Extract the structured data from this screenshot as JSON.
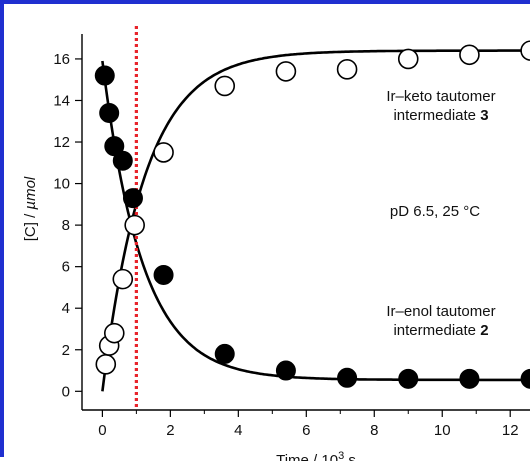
{
  "chart_data": {
    "type": "scatter",
    "title": "",
    "xlabel_text": "Time / 10",
    "xlabel_sup": "3",
    "xlabel_unit": " s",
    "ylabel_text": "[C] / ",
    "ylabel_unit": "µmol",
    "xlim": [
      -0.6,
      12.7
    ],
    "ylim": [
      -0.9,
      17.2
    ],
    "x_ticks": [
      0,
      2,
      4,
      6,
      8,
      10,
      12
    ],
    "y_ticks": [
      0,
      2,
      4,
      6,
      8,
      10,
      12,
      14,
      16
    ],
    "vertical_reference_line": {
      "x": 1.0,
      "color": "#e8232a",
      "style": "dotted"
    },
    "series": [
      {
        "marker": "filled-circle",
        "color": "#000000",
        "x": [
          0.07,
          0.2,
          0.35,
          0.6,
          0.9,
          1.8,
          3.6,
          5.4,
          7.2,
          9.0,
          10.8,
          12.6
        ],
        "y": [
          15.2,
          13.4,
          11.8,
          11.1,
          9.3,
          5.6,
          1.8,
          1.0,
          0.65,
          0.6,
          0.6,
          0.6
        ]
      },
      {
        "marker": "open-circle",
        "color": "#000000",
        "x": [
          0.1,
          0.2,
          0.35,
          0.6,
          0.95,
          1.8,
          3.6,
          5.4,
          7.2,
          9.0,
          10.8,
          12.6
        ],
        "y": [
          1.3,
          2.2,
          2.8,
          5.4,
          8.0,
          11.5,
          14.7,
          15.4,
          15.5,
          16.0,
          16.2,
          16.4
        ]
      }
    ],
    "fit_curves": [
      {
        "model": "exponential decay",
        "A0": 15.9,
        "k": 0.85,
        "offset": 0.55
      },
      {
        "model": "exponential rise",
        "A0": 16.4,
        "k": 0.8,
        "offset": 0.0
      }
    ],
    "annotations": {
      "keto_line1": "Ir–keto tautomer",
      "keto_line2": "intermediate ",
      "keto_num": "3",
      "conditions": "pD 6.5, 25 °C",
      "enol_line1": "Ir–enol tautomer",
      "enol_line2": "intermediate ",
      "enol_num": "2"
    }
  }
}
